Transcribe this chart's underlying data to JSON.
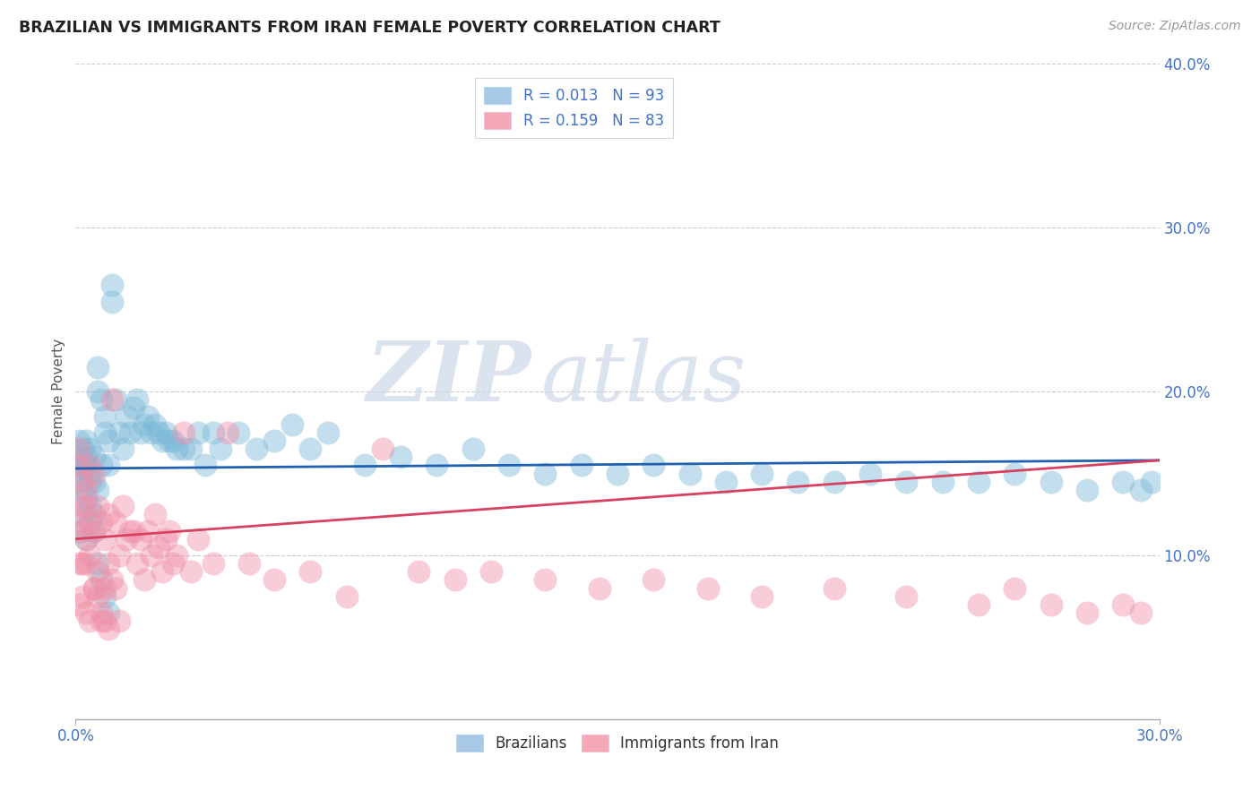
{
  "title": "BRAZILIAN VS IMMIGRANTS FROM IRAN FEMALE POVERTY CORRELATION CHART",
  "source": "Source: ZipAtlas.com",
  "ylabel": "Female Poverty",
  "x_min": 0.0,
  "x_max": 0.3,
  "y_min": 0.0,
  "y_max": 0.4,
  "legend1_label": "R = 0.013   N = 93",
  "legend2_label": "R = 0.159   N = 83",
  "legend1_color": "#a8c8e8",
  "legend2_color": "#f4a8b8",
  "scatter1_color": "#7ab8d8",
  "scatter2_color": "#f090a8",
  "line1_color": "#2060b0",
  "line2_color": "#d84060",
  "watermark_zip": "ZIP",
  "watermark_atlas": "atlas",
  "watermark_color": "#d8e4f0",
  "background_color": "#ffffff",
  "grid_color": "#cccccc",
  "axis_color": "#aaaaaa",
  "title_color": "#222222",
  "tick_label_color": "#4472c4",
  "brazil_line_y0": 0.153,
  "brazil_line_y1": 0.158,
  "iran_line_y0": 0.11,
  "iran_line_y1": 0.158,
  "brazil_x": [
    0.001,
    0.001,
    0.001,
    0.001,
    0.002,
    0.002,
    0.002,
    0.003,
    0.003,
    0.003,
    0.003,
    0.003,
    0.004,
    0.004,
    0.004,
    0.004,
    0.005,
    0.005,
    0.005,
    0.006,
    0.006,
    0.006,
    0.007,
    0.007,
    0.008,
    0.008,
    0.009,
    0.009,
    0.01,
    0.01,
    0.011,
    0.012,
    0.013,
    0.014,
    0.015,
    0.016,
    0.017,
    0.018,
    0.019,
    0.02,
    0.021,
    0.022,
    0.023,
    0.024,
    0.025,
    0.026,
    0.027,
    0.028,
    0.03,
    0.032,
    0.034,
    0.036,
    0.038,
    0.04,
    0.045,
    0.05,
    0.055,
    0.06,
    0.065,
    0.07,
    0.08,
    0.09,
    0.1,
    0.11,
    0.12,
    0.13,
    0.14,
    0.15,
    0.16,
    0.17,
    0.18,
    0.19,
    0.2,
    0.21,
    0.22,
    0.23,
    0.24,
    0.25,
    0.26,
    0.27,
    0.28,
    0.29,
    0.295,
    0.298,
    0.001,
    0.002,
    0.003,
    0.004,
    0.005,
    0.006,
    0.007,
    0.008,
    0.009
  ],
  "brazil_y": [
    0.155,
    0.16,
    0.145,
    0.17,
    0.15,
    0.165,
    0.14,
    0.155,
    0.16,
    0.17,
    0.135,
    0.155,
    0.15,
    0.165,
    0.13,
    0.145,
    0.145,
    0.16,
    0.125,
    0.2,
    0.215,
    0.14,
    0.195,
    0.155,
    0.175,
    0.185,
    0.155,
    0.17,
    0.255,
    0.265,
    0.195,
    0.175,
    0.165,
    0.185,
    0.175,
    0.19,
    0.195,
    0.175,
    0.18,
    0.185,
    0.175,
    0.18,
    0.175,
    0.17,
    0.175,
    0.17,
    0.17,
    0.165,
    0.165,
    0.165,
    0.175,
    0.155,
    0.175,
    0.165,
    0.175,
    0.165,
    0.17,
    0.18,
    0.165,
    0.175,
    0.155,
    0.16,
    0.155,
    0.165,
    0.155,
    0.15,
    0.155,
    0.15,
    0.155,
    0.15,
    0.145,
    0.15,
    0.145,
    0.145,
    0.15,
    0.145,
    0.145,
    0.145,
    0.15,
    0.145,
    0.14,
    0.145,
    0.14,
    0.145,
    0.115,
    0.125,
    0.11,
    0.12,
    0.115,
    0.095,
    0.085,
    0.075,
    0.065
  ],
  "iran_x": [
    0.001,
    0.001,
    0.001,
    0.001,
    0.002,
    0.002,
    0.002,
    0.002,
    0.003,
    0.003,
    0.003,
    0.003,
    0.004,
    0.004,
    0.004,
    0.005,
    0.005,
    0.005,
    0.006,
    0.006,
    0.007,
    0.007,
    0.008,
    0.008,
    0.009,
    0.009,
    0.01,
    0.011,
    0.012,
    0.013,
    0.014,
    0.015,
    0.016,
    0.017,
    0.018,
    0.019,
    0.02,
    0.021,
    0.022,
    0.023,
    0.024,
    0.025,
    0.026,
    0.027,
    0.028,
    0.03,
    0.032,
    0.034,
    0.038,
    0.042,
    0.048,
    0.055,
    0.065,
    0.075,
    0.085,
    0.095,
    0.105,
    0.115,
    0.13,
    0.145,
    0.16,
    0.175,
    0.19,
    0.21,
    0.23,
    0.25,
    0.26,
    0.27,
    0.28,
    0.29,
    0.295,
    0.001,
    0.002,
    0.003,
    0.004,
    0.005,
    0.006,
    0.007,
    0.008,
    0.009,
    0.01,
    0.011,
    0.012
  ],
  "iran_y": [
    0.155,
    0.165,
    0.12,
    0.095,
    0.145,
    0.115,
    0.095,
    0.13,
    0.11,
    0.14,
    0.095,
    0.13,
    0.12,
    0.1,
    0.155,
    0.15,
    0.115,
    0.08,
    0.13,
    0.09,
    0.12,
    0.06,
    0.11,
    0.08,
    0.095,
    0.125,
    0.195,
    0.12,
    0.1,
    0.13,
    0.11,
    0.115,
    0.115,
    0.095,
    0.11,
    0.085,
    0.115,
    0.1,
    0.125,
    0.105,
    0.09,
    0.11,
    0.115,
    0.095,
    0.1,
    0.175,
    0.09,
    0.11,
    0.095,
    0.175,
    0.095,
    0.085,
    0.09,
    0.075,
    0.165,
    0.09,
    0.085,
    0.09,
    0.085,
    0.08,
    0.085,
    0.08,
    0.075,
    0.08,
    0.075,
    0.07,
    0.08,
    0.07,
    0.065,
    0.07,
    0.065,
    0.07,
    0.075,
    0.065,
    0.06,
    0.08,
    0.075,
    0.065,
    0.06,
    0.055,
    0.085,
    0.08,
    0.06
  ]
}
